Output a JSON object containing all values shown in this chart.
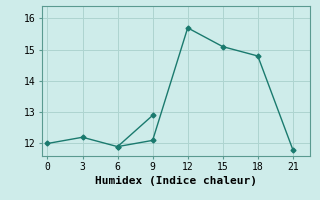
{
  "xlabel": "Humidex (Indice chaleur)",
  "ylabel": "",
  "background_color": "#ceecea",
  "grid_color": "#aed4d0",
  "line_color": "#1a7a6e",
  "series1_x": [
    0,
    3,
    6,
    9,
    12,
    15,
    18,
    21
  ],
  "series1_y": [
    12.0,
    12.2,
    11.9,
    12.1,
    15.7,
    15.1,
    14.8,
    11.8
  ],
  "series2_x": [
    6,
    9
  ],
  "series2_y": [
    11.9,
    12.9
  ],
  "xlim": [
    -0.5,
    22.5
  ],
  "ylim": [
    11.6,
    16.4
  ],
  "xticks": [
    0,
    3,
    6,
    9,
    12,
    15,
    18,
    21
  ],
  "yticks": [
    12,
    13,
    14,
    15,
    16
  ],
  "marker": "D",
  "markersize": 2.5,
  "linewidth": 1.0,
  "xlabel_fontsize": 8,
  "tick_fontsize": 7,
  "font_family": "monospace"
}
